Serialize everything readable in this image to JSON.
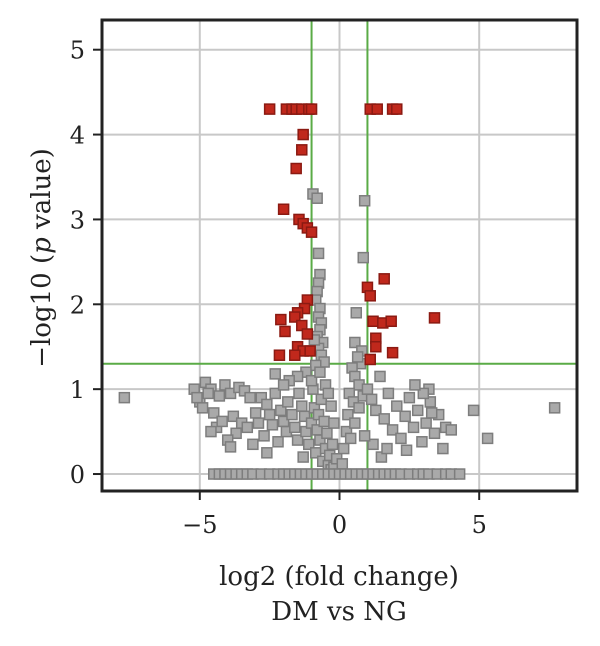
{
  "chart_data": {
    "type": "scatter",
    "title": "",
    "xlabel": "log2 (fold change)",
    "xlabel_sub": "DM vs NG",
    "ylabel_pre": "−log10 (",
    "ylabel_italic": "p",
    "ylabel_post": " value)",
    "xlim": [
      -8.5,
      8.5
    ],
    "ylim": [
      -0.2,
      5.35
    ],
    "xticks": [
      -5,
      0,
      5
    ],
    "xtick_labels": [
      "−5",
      "0",
      "5"
    ],
    "yticks": [
      0,
      1,
      2,
      3,
      4,
      5
    ],
    "ytick_labels": [
      "0",
      "1",
      "2",
      "3",
      "4",
      "5"
    ],
    "grid": true,
    "thresholds": {
      "x": [
        -1,
        1
      ],
      "y": 1.3
    },
    "colors": {
      "significant": "#c0281c",
      "significant_edge": "#8b1a12",
      "not_significant": "#a9a9a9",
      "not_significant_edge": "#7d7d7d",
      "threshold_line": "#5aab46",
      "grid": "#c8c8c8",
      "frame": "#222222"
    },
    "series": [
      {
        "color": "#c0281c",
        "points": [
          [
            -2.5,
            4.3
          ],
          [
            -1.9,
            4.3
          ],
          [
            -1.7,
            4.3
          ],
          [
            -1.55,
            4.3
          ],
          [
            -1.35,
            4.3
          ],
          [
            -1.1,
            4.3
          ],
          [
            -1.0,
            4.3
          ],
          [
            1.1,
            4.3
          ],
          [
            1.35,
            4.3
          ],
          [
            1.9,
            4.3
          ],
          [
            2.05,
            4.3
          ],
          [
            -1.3,
            4.0
          ],
          [
            -1.35,
            3.82
          ],
          [
            -1.55,
            3.6
          ],
          [
            -2.0,
            3.12
          ],
          [
            -1.45,
            3.0
          ],
          [
            -1.3,
            2.95
          ],
          [
            -1.15,
            2.9
          ],
          [
            -1.0,
            2.85
          ],
          [
            1.6,
            2.3
          ],
          [
            1.0,
            2.2
          ],
          [
            1.1,
            2.1
          ],
          [
            -1.15,
            2.05
          ],
          [
            -1.25,
            1.95
          ],
          [
            -1.5,
            1.9
          ],
          [
            -1.6,
            1.85
          ],
          [
            -2.1,
            1.82
          ],
          [
            -1.35,
            1.75
          ],
          [
            -1.95,
            1.68
          ],
          [
            -1.15,
            1.65
          ],
          [
            1.2,
            1.8
          ],
          [
            1.55,
            1.78
          ],
          [
            1.85,
            1.8
          ],
          [
            3.4,
            1.84
          ],
          [
            1.3,
            1.6
          ],
          [
            -1.5,
            1.5
          ],
          [
            -1.3,
            1.45
          ],
          [
            -1.05,
            1.45
          ],
          [
            -2.15,
            1.4
          ],
          [
            -1.6,
            1.4
          ],
          [
            1.3,
            1.5
          ],
          [
            1.9,
            1.43
          ],
          [
            1.1,
            1.35
          ]
        ]
      },
      {
        "color": "#a9a9a9",
        "points": [
          [
            -7.7,
            0.9
          ],
          [
            -4.8,
            1.08
          ],
          [
            -4.6,
            1.0
          ],
          [
            -4.3,
            0.92
          ],
          [
            -4.1,
            1.05
          ],
          [
            -3.9,
            0.95
          ],
          [
            -3.6,
            1.02
          ],
          [
            -3.4,
            0.98
          ],
          [
            -3.2,
            0.9
          ],
          [
            -5.0,
            0.85
          ],
          [
            -4.9,
            0.78
          ],
          [
            -4.5,
            0.72
          ],
          [
            -4.4,
            0.55
          ],
          [
            -4.2,
            0.62
          ],
          [
            -3.8,
            0.68
          ],
          [
            -3.7,
            0.48
          ],
          [
            -3.5,
            0.6
          ],
          [
            -4.0,
            0.4
          ],
          [
            -3.9,
            0.32
          ],
          [
            -4.6,
            0.5
          ],
          [
            -3.3,
            0.55
          ],
          [
            -3.0,
            0.72
          ],
          [
            -2.8,
            0.9
          ],
          [
            -2.6,
            0.82
          ],
          [
            -2.9,
            0.6
          ],
          [
            -2.7,
            0.45
          ],
          [
            -2.5,
            0.7
          ],
          [
            -2.4,
            0.58
          ],
          [
            -2.3,
            0.95
          ],
          [
            -2.2,
            0.38
          ],
          [
            -2.1,
            0.75
          ],
          [
            -2.0,
            0.62
          ],
          [
            -1.9,
            0.5
          ],
          [
            -1.85,
            0.85
          ],
          [
            -1.7,
            0.7
          ],
          [
            -1.6,
            0.55
          ],
          [
            -1.5,
            0.4
          ],
          [
            -1.45,
            0.95
          ],
          [
            -1.35,
            0.8
          ],
          [
            -1.25,
            0.68
          ],
          [
            -1.2,
            0.5
          ],
          [
            -1.1,
            0.35
          ],
          [
            -1.0,
            0.6
          ],
          [
            -0.95,
            1.0
          ],
          [
            -0.9,
            0.78
          ],
          [
            -0.85,
            0.25
          ],
          [
            -0.8,
            0.52
          ],
          [
            -0.75,
            0.7
          ],
          [
            -0.7,
            0.4
          ],
          [
            -0.65,
            0.88
          ],
          [
            -0.6,
            0.15
          ],
          [
            -0.55,
            0.62
          ],
          [
            -0.5,
            0.3
          ],
          [
            -0.45,
            0.48
          ],
          [
            -0.4,
            0.1
          ],
          [
            -0.35,
            0.22
          ],
          [
            -0.3,
            0.05
          ],
          [
            -0.25,
            0.35
          ],
          [
            -0.2,
            0.08
          ],
          [
            -0.1,
            0.18
          ],
          [
            -0.95,
            3.3
          ],
          [
            -0.8,
            3.25
          ],
          [
            -0.75,
            2.6
          ],
          [
            -0.7,
            2.35
          ],
          [
            -0.75,
            2.25
          ],
          [
            -0.8,
            2.15
          ],
          [
            -0.85,
            2.05
          ],
          [
            -0.7,
            1.95
          ],
          [
            -0.75,
            1.85
          ],
          [
            -0.65,
            1.78
          ],
          [
            -0.7,
            1.7
          ],
          [
            -0.8,
            1.62
          ],
          [
            -0.6,
            1.55
          ],
          [
            -0.75,
            1.48
          ],
          [
            -0.65,
            1.4
          ],
          [
            -0.55,
            1.32
          ],
          [
            -0.9,
            1.58
          ],
          [
            -0.85,
            1.28
          ],
          [
            -1.2,
            1.2
          ],
          [
            -1.5,
            1.15
          ],
          [
            -1.8,
            1.1
          ],
          [
            -2.0,
            1.05
          ],
          [
            -2.3,
            1.18
          ],
          [
            -1.0,
            1.1
          ],
          [
            -0.7,
            1.2
          ],
          [
            -0.5,
            1.05
          ],
          [
            -0.4,
            0.95
          ],
          [
            -0.3,
            0.8
          ],
          [
            -0.2,
            0.6
          ],
          [
            0.9,
            3.22
          ],
          [
            0.85,
            2.55
          ],
          [
            0.75,
            1.3
          ],
          [
            0.6,
            1.9
          ],
          [
            0.55,
            1.55
          ],
          [
            0.8,
            1.45
          ],
          [
            0.65,
            1.38
          ],
          [
            0.45,
            1.25
          ],
          [
            0.55,
            1.15
          ],
          [
            0.7,
            1.05
          ],
          [
            0.35,
            0.95
          ],
          [
            0.5,
            0.85
          ],
          [
            0.3,
            0.7
          ],
          [
            0.25,
            0.5
          ],
          [
            0.15,
            0.3
          ],
          [
            0.1,
            0.12
          ],
          [
            0.4,
            0.42
          ],
          [
            0.55,
            0.6
          ],
          [
            0.7,
            0.78
          ],
          [
            0.85,
            0.92
          ],
          [
            1.0,
            1.0
          ],
          [
            1.15,
            0.88
          ],
          [
            1.3,
            0.75
          ],
          [
            1.45,
            1.15
          ],
          [
            1.6,
            0.65
          ],
          [
            1.75,
            0.95
          ],
          [
            1.9,
            0.52
          ],
          [
            2.05,
            0.8
          ],
          [
            2.2,
            0.42
          ],
          [
            2.35,
            0.68
          ],
          [
            2.5,
            0.9
          ],
          [
            2.65,
            0.55
          ],
          [
            2.8,
            0.75
          ],
          [
            2.95,
            0.38
          ],
          [
            3.1,
            0.6
          ],
          [
            3.25,
            0.85
          ],
          [
            3.4,
            0.48
          ],
          [
            3.55,
            0.7
          ],
          [
            3.7,
            0.3
          ],
          [
            3.2,
            1.0
          ],
          [
            3.0,
            0.95
          ],
          [
            2.7,
            1.05
          ],
          [
            3.3,
            0.72
          ],
          [
            2.4,
            0.28
          ],
          [
            1.5,
            0.2
          ],
          [
            1.2,
            0.35
          ],
          [
            0.9,
            0.45
          ],
          [
            1.7,
            0.3
          ],
          [
            3.8,
            0.55
          ],
          [
            4.0,
            0.52
          ],
          [
            4.8,
            0.75
          ],
          [
            5.3,
            0.42
          ],
          [
            7.7,
            0.78
          ],
          [
            -5.2,
            1.0
          ],
          [
            -5.1,
            0.9
          ],
          [
            -4.7,
            0.95
          ],
          [
            -3.1,
            0.35
          ],
          [
            -2.6,
            0.25
          ],
          [
            -1.3,
            0.2
          ],
          [
            -4.5,
            0
          ],
          [
            -4.3,
            0
          ],
          [
            -4.1,
            0
          ],
          [
            -3.9,
            0
          ],
          [
            -3.7,
            0
          ],
          [
            -3.5,
            0
          ],
          [
            -3.3,
            0
          ],
          [
            -3.1,
            0
          ],
          [
            -2.8,
            0
          ],
          [
            -2.5,
            0
          ],
          [
            -2.2,
            0
          ],
          [
            -2.0,
            0
          ],
          [
            -1.8,
            0
          ],
          [
            -1.6,
            0
          ],
          [
            -1.4,
            0
          ],
          [
            -1.2,
            0
          ],
          [
            -1.0,
            0
          ],
          [
            -0.8,
            0
          ],
          [
            -0.6,
            0
          ],
          [
            -0.4,
            0
          ],
          [
            -0.2,
            0
          ],
          [
            0.0,
            0
          ],
          [
            0.2,
            0
          ],
          [
            0.4,
            0
          ],
          [
            0.6,
            0
          ],
          [
            0.8,
            0
          ],
          [
            1.0,
            0
          ],
          [
            1.2,
            0
          ],
          [
            1.4,
            0
          ],
          [
            1.6,
            0
          ],
          [
            1.8,
            0
          ],
          [
            2.0,
            0
          ],
          [
            2.2,
            0
          ],
          [
            2.5,
            0
          ],
          [
            2.8,
            0
          ],
          [
            3.0,
            0
          ],
          [
            3.2,
            0
          ],
          [
            3.5,
            0
          ],
          [
            3.8,
            0
          ],
          [
            4.0,
            0
          ],
          [
            4.3,
            0
          ]
        ]
      }
    ]
  }
}
